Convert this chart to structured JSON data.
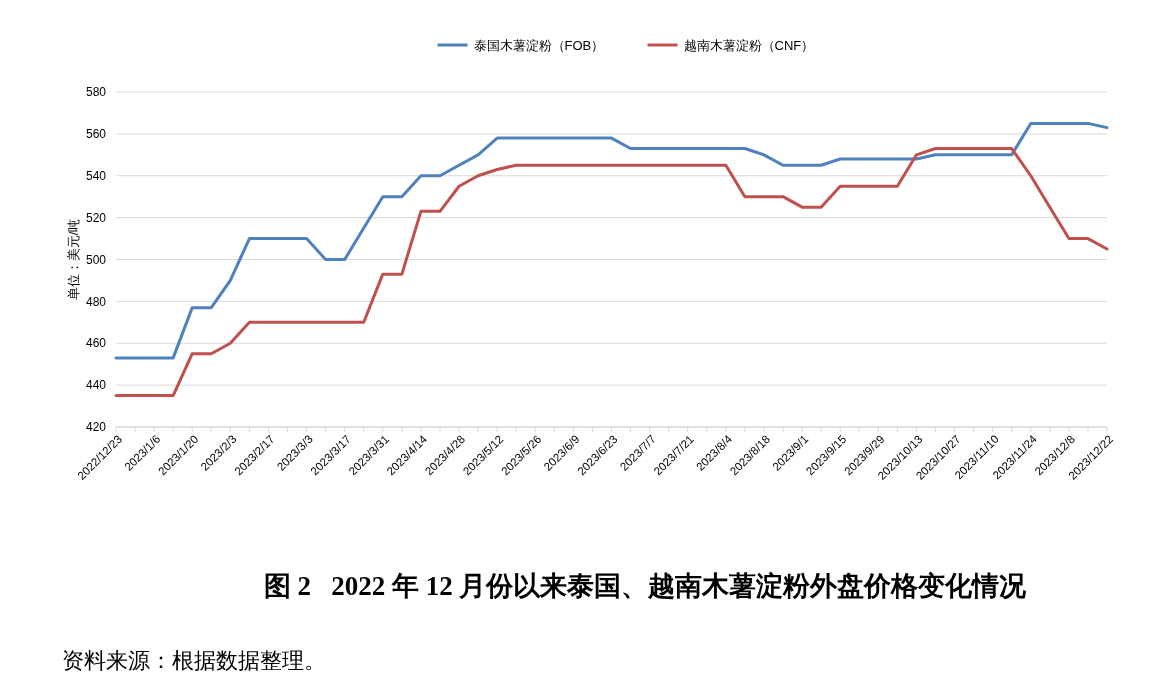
{
  "chart_data": {
    "type": "line",
    "title": "图 2   2022 年 12 月份以来泰国、越南木薯淀粉外盘价格变化情况",
    "ylabel": "单位：美元/吨",
    "annotations": [
      "资料来源：根据数据整理。"
    ],
    "categories": [
      "2022/12/23",
      null,
      "2023/1/6",
      null,
      "2023/1/20",
      null,
      "2023/2/3",
      null,
      "2023/2/17",
      null,
      "2023/3/3",
      null,
      "2023/3/17",
      null,
      "2023/3/31",
      null,
      "2023/4/14",
      null,
      "2023/4/28",
      null,
      "2023/5/12",
      null,
      "2023/5/26",
      null,
      "2023/6/9",
      null,
      "2023/6/23",
      null,
      "2023/7/7",
      null,
      "2023/7/21",
      null,
      "2023/8/4",
      null,
      "2023/8/18",
      null,
      "2023/9/1",
      null,
      "2023/9/15",
      null,
      "2023/9/29",
      null,
      "2023/10/13",
      null,
      "2023/10/27",
      null,
      "2023/11/10",
      null,
      "2023/11/24",
      null,
      "2023/12/8",
      null,
      "2023/12/22"
    ],
    "series": [
      {
        "name": "泰国木薯淀粉（FOB）",
        "color": "#4f81bd",
        "values": [
          453,
          453,
          453,
          453,
          477,
          477,
          490,
          510,
          510,
          510,
          510,
          500,
          500,
          515,
          530,
          530,
          540,
          540,
          545,
          550,
          558,
          558,
          558,
          558,
          558,
          558,
          558,
          553,
          553,
          553,
          553,
          553,
          553,
          553,
          550,
          545,
          545,
          545,
          548,
          548,
          548,
          548,
          548,
          550,
          550,
          550,
          550,
          550,
          565,
          565,
          565,
          565,
          563
        ]
      },
      {
        "name": "越南木薯淀粉（CNF）",
        "color": "#c0504d",
        "values": [
          435,
          435,
          435,
          435,
          455,
          455,
          460,
          470,
          470,
          470,
          470,
          470,
          470,
          470,
          493,
          493,
          523,
          523,
          535,
          540,
          543,
          545,
          545,
          545,
          545,
          545,
          545,
          545,
          545,
          545,
          545,
          545,
          545,
          530,
          530,
          530,
          525,
          525,
          535,
          535,
          535,
          535,
          550,
          553,
          553,
          553,
          553,
          553,
          540,
          525,
          510,
          510,
          505
        ]
      }
    ],
    "ylim": [
      420,
      580
    ],
    "yticks": [
      420,
      440,
      460,
      480,
      500,
      520,
      540,
      560,
      580
    ],
    "grid": "y",
    "legend": "top"
  }
}
